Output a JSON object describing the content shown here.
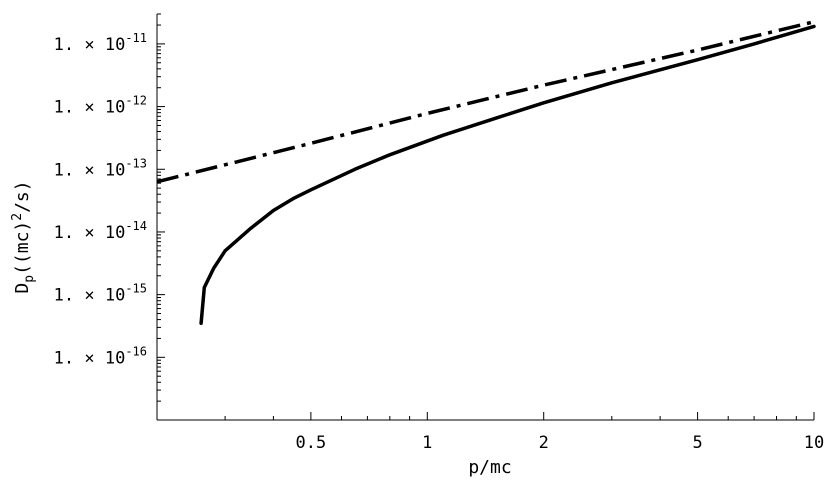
{
  "chart_data": {
    "type": "line",
    "title": "",
    "xlabel": "p/mc",
    "ylabel": {
      "base": "D",
      "sub": "p",
      "mid": "((mc)",
      "sup": "2",
      "end": "/s)"
    },
    "x_scale": "log",
    "y_scale": "log",
    "xlim": [
      0.2,
      10
    ],
    "ylim": [
      1e-17,
      3e-11
    ],
    "grid": false,
    "legend": "none",
    "x_ticks": [
      {
        "value": 0.5,
        "label": "0.5"
      },
      {
        "value": 1,
        "label": "1"
      },
      {
        "value": 2,
        "label": "2"
      },
      {
        "value": 5,
        "label": "5"
      },
      {
        "value": 10,
        "label": "10"
      }
    ],
    "y_ticks": [
      {
        "value": 1e-16,
        "mant": "1. × 10",
        "exp": "-16"
      },
      {
        "value": 1e-15,
        "mant": "1. × 10",
        "exp": "-15"
      },
      {
        "value": 1e-14,
        "mant": "1. × 10",
        "exp": "-14"
      },
      {
        "value": 1e-13,
        "mant": "1. × 10",
        "exp": "-13"
      },
      {
        "value": 1e-12,
        "mant": "1. × 10",
        "exp": "-12"
      },
      {
        "value": 1e-11,
        "mant": "1. × 10",
        "exp": "-11"
      }
    ],
    "series": [
      {
        "style": "solid",
        "color": "#000000",
        "points": [
          [
            0.26,
            3.5e-16
          ],
          [
            0.265,
            1.3e-15
          ],
          [
            0.28,
            2.6e-15
          ],
          [
            0.3,
            5e-15
          ],
          [
            0.35,
            1.15e-14
          ],
          [
            0.4,
            2.2e-14
          ],
          [
            0.45,
            3.4e-14
          ],
          [
            0.5,
            4.7e-14
          ],
          [
            0.65,
            1e-13
          ],
          [
            0.8,
            1.7e-13
          ],
          [
            1.1,
            3.5e-13
          ],
          [
            1.5,
            6.5e-13
          ],
          [
            2.0,
            1.15e-12
          ],
          [
            3.0,
            2.4e-12
          ],
          [
            5.0,
            5.6e-12
          ],
          [
            7.0,
            1e-11
          ],
          [
            10.0,
            1.9e-11
          ]
        ]
      },
      {
        "style": "dash-dot",
        "color": "#000000",
        "points": [
          [
            0.2,
            6.3e-14
          ],
          [
            0.5,
            2.6e-13
          ],
          [
            1.0,
            7.8e-13
          ],
          [
            2.0,
            2.2e-12
          ],
          [
            5.0,
            8e-12
          ],
          [
            10.0,
            2.25e-11
          ]
        ]
      }
    ]
  }
}
